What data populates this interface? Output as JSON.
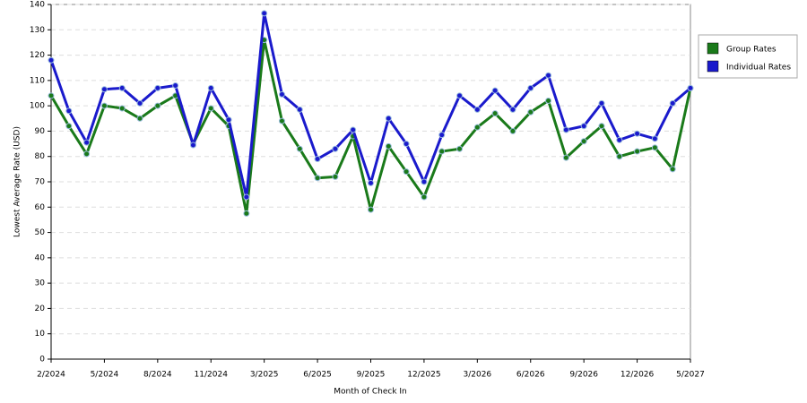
{
  "chart_data": {
    "type": "line",
    "x_label": "Month of Check In",
    "y_label": "Lowest Average Rate (USD)",
    "categories": [
      "2/2024",
      null,
      null,
      "5/2024",
      null,
      null,
      "8/2024",
      null,
      null,
      "11/2024",
      null,
      null,
      "3/2025",
      null,
      null,
      "6/2025",
      null,
      null,
      "9/2025",
      null,
      null,
      "12/2025",
      null,
      null,
      "3/2026",
      null,
      null,
      "6/2026",
      null,
      null,
      "9/2026",
      null,
      null,
      "12/2026",
      null,
      null,
      "5/2027"
    ],
    "series": [
      {
        "name": "Group Rates",
        "color": "#1a7a1a",
        "values": [
          104,
          92,
          81,
          100,
          99,
          95,
          100,
          104,
          85,
          99,
          92,
          57.5,
          126,
          94,
          83,
          71.5,
          72,
          88,
          59,
          84,
          74,
          64,
          82,
          83,
          91.5,
          97,
          90,
          97.5,
          102,
          79.5,
          86,
          92,
          80,
          82,
          83.5,
          75,
          107
        ]
      },
      {
        "name": "Individual Rates",
        "color": "#1a1acc",
        "values": [
          118,
          98,
          85.5,
          106.5,
          107,
          101,
          107,
          108,
          84.5,
          107,
          94.5,
          64,
          136.5,
          104.5,
          98.5,
          79,
          83,
          90.5,
          69.5,
          95,
          85,
          70,
          88.5,
          104,
          98.5,
          106,
          98.5,
          107,
          112,
          90.5,
          92,
          101,
          86.5,
          89,
          87,
          101,
          107
        ]
      }
    ],
    "ylim": [
      0,
      140
    ],
    "yticks": [
      0,
      10,
      20,
      30,
      40,
      50,
      60,
      70,
      80,
      90,
      100,
      110,
      120,
      130,
      140
    ],
    "grid": true,
    "legend": "right"
  }
}
